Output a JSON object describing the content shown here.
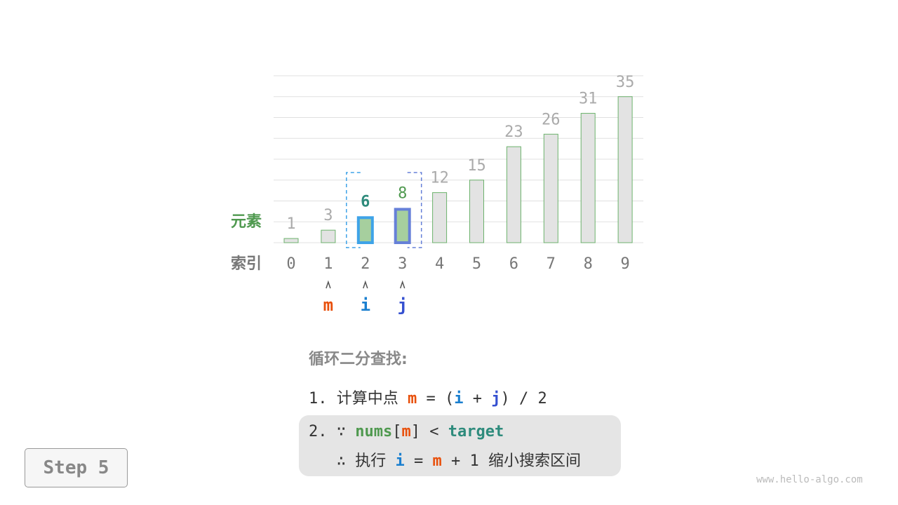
{
  "chart_data": {
    "type": "bar",
    "categories": [
      "0",
      "1",
      "2",
      "3",
      "4",
      "5",
      "6",
      "7",
      "8",
      "9"
    ],
    "values": [
      1,
      3,
      6,
      8,
      12,
      15,
      23,
      26,
      31,
      35
    ],
    "ylim": [
      0,
      40
    ],
    "grid": true,
    "row_labels": {
      "value": "元素",
      "index": "索引"
    },
    "highlight": {
      "i": 2,
      "j": 3,
      "m": 1
    },
    "colors": {
      "bar": "#e3e3e3",
      "bar_edge": "#6cb26c",
      "active_fill": "#a6cf9e",
      "i": "#3ea3e8",
      "j": "#6680d8",
      "m": "#e8500c",
      "green": "#4f994f",
      "teal": "#2e8b7c"
    }
  },
  "pointers": {
    "m": "m",
    "i": "i",
    "j": "j",
    "arrow": "⋏"
  },
  "steps": {
    "title": "循环二分查找:",
    "l1": {
      "num": "1.",
      "text": "计算中点",
      "m": "m",
      "eq": "=",
      "lp": "(",
      "i": "i",
      "plus": "+",
      "j": "j",
      "rp": ")",
      "div": "/",
      "two": "2"
    },
    "l2": {
      "num": "2.",
      "because": "∵",
      "nums": "nums",
      "lb": "[",
      "m": "m",
      "rb": "]",
      "lt": "<",
      "target": "target"
    },
    "l3": {
      "therefore": "∴",
      "exec": "执行",
      "i": "i",
      "eq": "=",
      "m": "m",
      "plus": "+",
      "one": "1",
      "rest": "缩小搜索区间"
    }
  },
  "step_label": "Step 5",
  "watermark": "www.hello-algo.com"
}
